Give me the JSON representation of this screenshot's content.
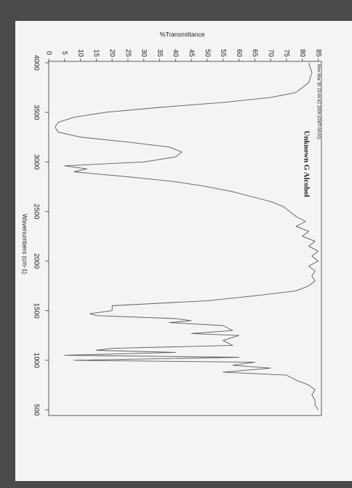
{
  "chart_data": {
    "type": "line",
    "title": "Unknown G Alcohol",
    "subtitle": "Mon Mar 30 15:44:42 2009 (GMT-04:00)",
    "x_label": "Wavenumbers (cm-1)",
    "y_label": "%Transmittance",
    "xlim": [
      4000,
      450
    ],
    "ylim": [
      0,
      86
    ],
    "xticks": [
      4000,
      3500,
      3000,
      2500,
      2000,
      1500,
      1000,
      500
    ],
    "yticks": [
      0,
      5,
      10,
      15,
      20,
      25,
      30,
      35,
      40,
      45,
      50,
      55,
      60,
      65,
      70,
      75,
      80,
      85
    ],
    "x": [
      4000,
      3900,
      3800,
      3700,
      3650,
      3600,
      3550,
      3500,
      3450,
      3400,
      3350,
      3300,
      3250,
      3200,
      3150,
      3100,
      3050,
      3000,
      2960,
      2930,
      2900,
      2870,
      2850,
      2800,
      2750,
      2700,
      2650,
      2600,
      2550,
      2500,
      2450,
      2400,
      2350,
      2300,
      2250,
      2200,
      2150,
      2100,
      2050,
      2000,
      1950,
      1900,
      1850,
      1800,
      1750,
      1700,
      1650,
      1600,
      1550,
      1500,
      1470,
      1450,
      1420,
      1400,
      1380,
      1350,
      1300,
      1270,
      1250,
      1200,
      1150,
      1120,
      1100,
      1080,
      1050,
      1030,
      1000,
      980,
      950,
      920,
      880,
      850,
      800,
      750,
      700,
      650,
      600,
      550,
      500
    ],
    "series": [
      {
        "name": "Unknown G Alcohol",
        "color": "#555555",
        "values": [
          82,
          83,
          82,
          78,
          70,
          55,
          35,
          18,
          8,
          3,
          2,
          3,
          10,
          25,
          38,
          42,
          40,
          30,
          5,
          12,
          8,
          18,
          25,
          40,
          50,
          58,
          64,
          70,
          74,
          76,
          78,
          81,
          78,
          82,
          80,
          84,
          82,
          85,
          83,
          85,
          82,
          84,
          83,
          84,
          82,
          78,
          65,
          50,
          20,
          20,
          13,
          15,
          40,
          45,
          38,
          55,
          58,
          45,
          60,
          55,
          58,
          20,
          15,
          40,
          5,
          60,
          8,
          65,
          58,
          70,
          55,
          75,
          78,
          82,
          84,
          83,
          84,
          84,
          85
        ]
      }
    ],
    "title_color": "#c0272d"
  }
}
